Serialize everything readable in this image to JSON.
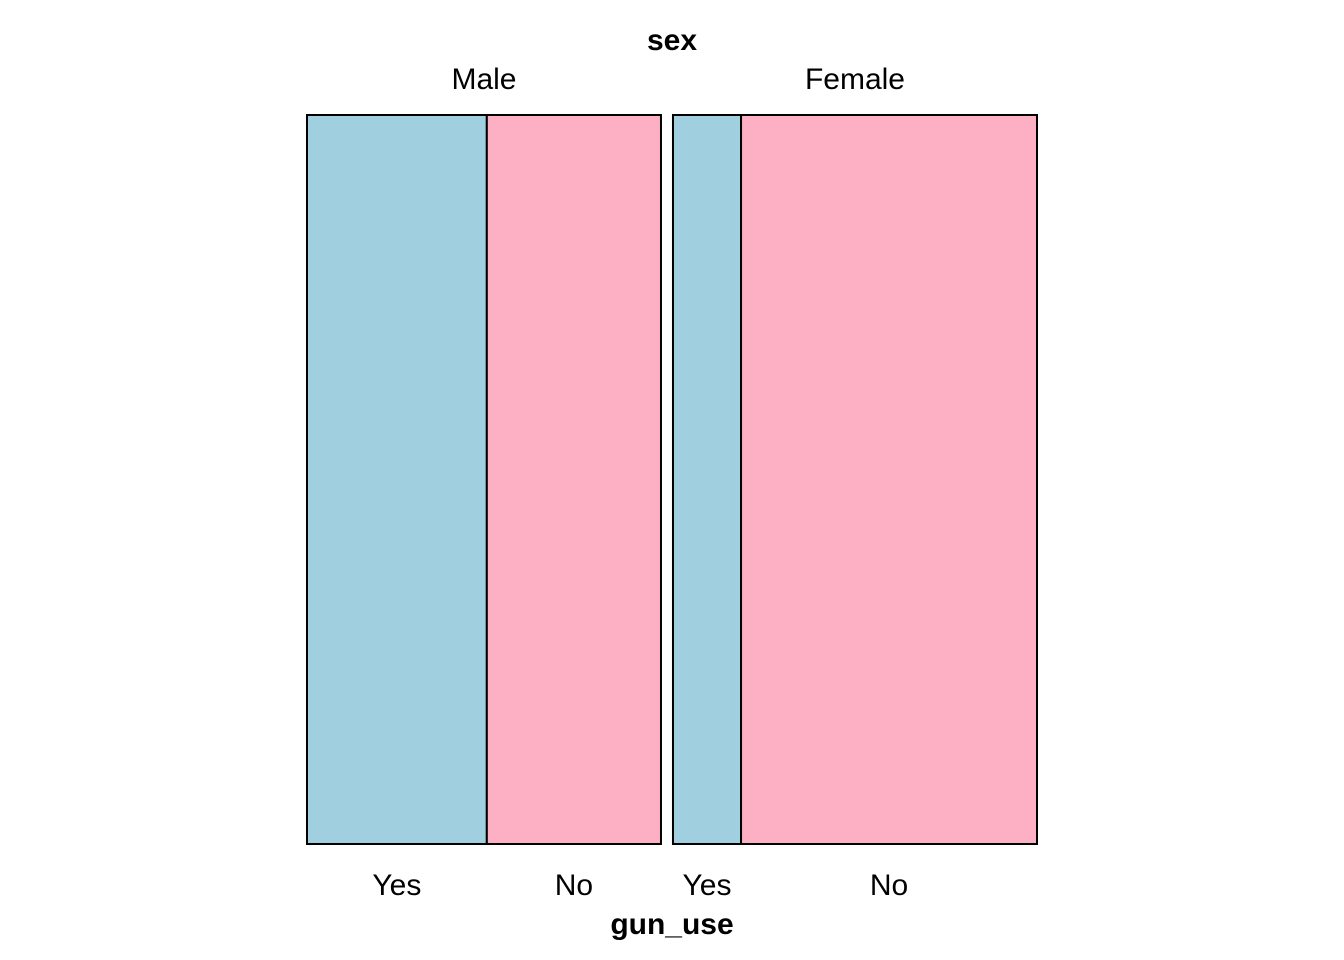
{
  "chart_data": {
    "type": "mosaic",
    "top_variable": "sex",
    "bottom_variable": "gun_use",
    "groups": [
      {
        "label": "Male",
        "proportion": 0.493,
        "cells": [
          {
            "label": "Yes",
            "proportion": 0.508
          },
          {
            "label": "No",
            "proportion": 0.492
          }
        ]
      },
      {
        "label": "Female",
        "proportion": 0.507,
        "cells": [
          {
            "label": "Yes",
            "proportion": 0.187
          },
          {
            "label": "No",
            "proportion": 0.813
          }
        ]
      }
    ],
    "colors": {
      "Yes": "#a0cfe0",
      "No": "#fdb0c3",
      "outline": "#000000"
    }
  }
}
